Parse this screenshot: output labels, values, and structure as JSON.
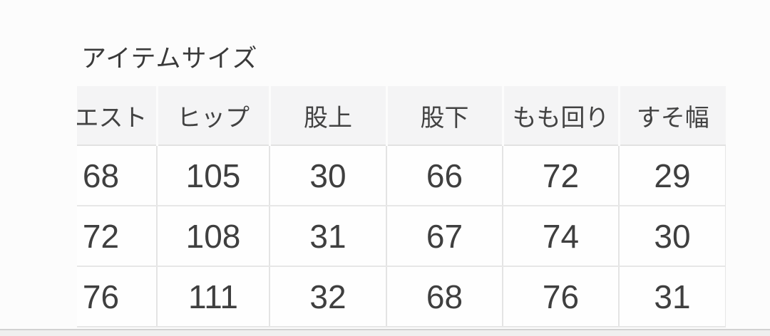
{
  "title": "アイテムサイズ",
  "size_table": {
    "columns": {
      "waist": "エスト",
      "hip": "ヒップ",
      "rise": "股上",
      "inseam": "股下",
      "thigh": "もも回り",
      "hem_width": "すそ幅"
    },
    "rows": [
      [
        "68",
        "105",
        "30",
        "66",
        "72",
        "29"
      ],
      [
        "72",
        "108",
        "31",
        "67",
        "74",
        "30"
      ],
      [
        "76",
        "111",
        "32",
        "68",
        "76",
        "31"
      ]
    ]
  },
  "colors": {
    "page_bg": "#fcfcfc",
    "header_bg": "#f4f4f5",
    "cell_border": "#e4e4e4",
    "text": "#3c3c3c",
    "bottom_divider": "#d2d2d2"
  }
}
